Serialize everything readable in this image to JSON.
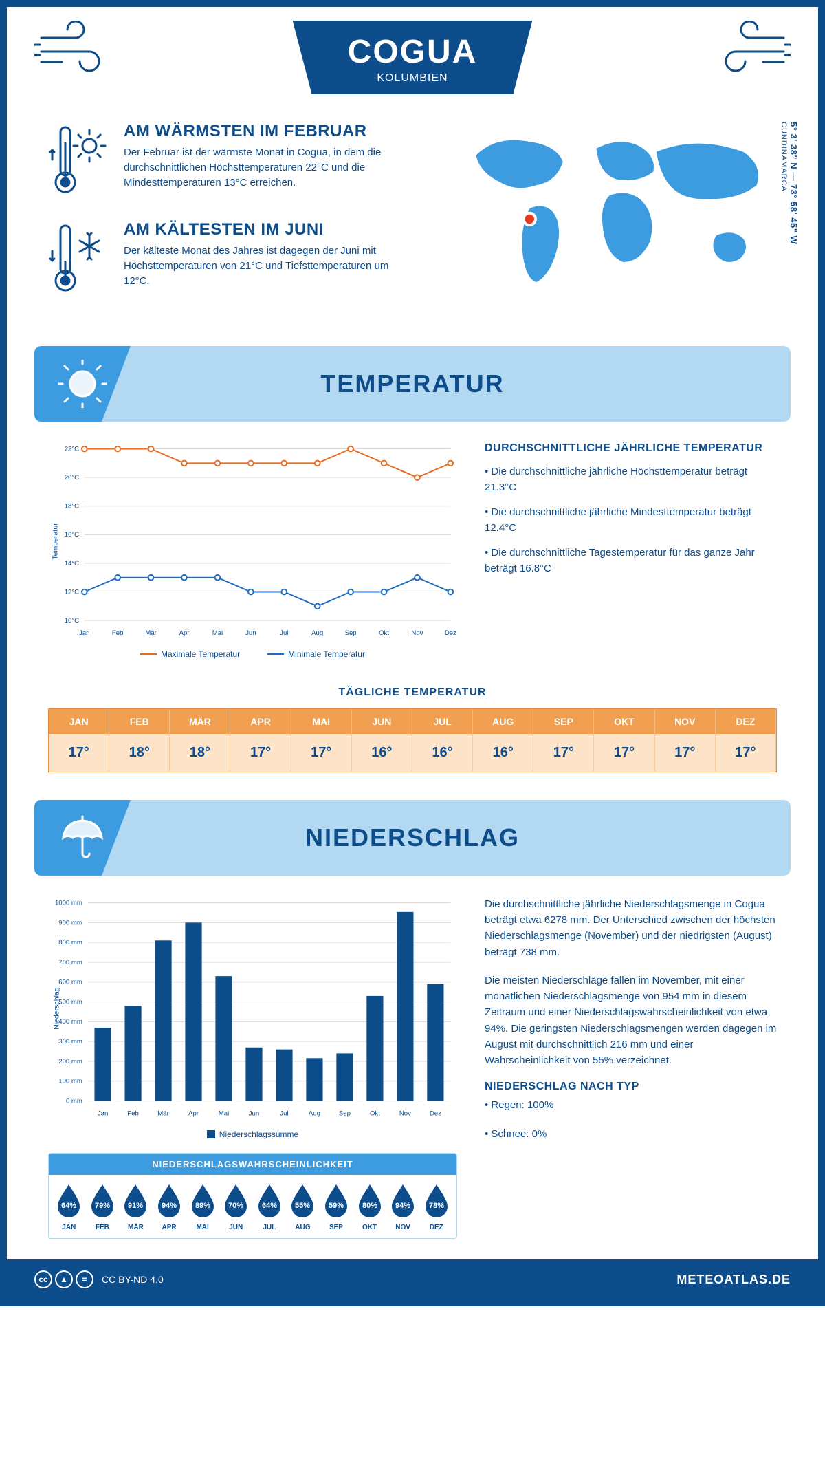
{
  "header": {
    "title": "COGUA",
    "subtitle": "KOLUMBIEN"
  },
  "location": {
    "coords": "5° 3' 38\" N — 73° 58' 45\" W",
    "region": "CUNDINAMARCA",
    "marker": {
      "cx_pct": 26,
      "cy_pct": 56
    }
  },
  "facts": {
    "warmest": {
      "title": "AM WÄRMSTEN IM FEBRUAR",
      "text": "Der Februar ist der wärmste Monat in Cogua, in dem die durchschnittlichen Höchsttemperaturen 22°C und die Mindesttemperaturen 13°C erreichen."
    },
    "coldest": {
      "title": "AM KÄLTESTEN IM JUNI",
      "text": "Der kälteste Monat des Jahres ist dagegen der Juni mit Höchsttemperaturen von 21°C und Tiefsttemperaturen um 12°C."
    }
  },
  "tempSection": {
    "heading": "TEMPERATUR",
    "chart": {
      "type": "line",
      "months": [
        "Jan",
        "Feb",
        "Mär",
        "Apr",
        "Mai",
        "Jun",
        "Jul",
        "Aug",
        "Sep",
        "Okt",
        "Nov",
        "Dez"
      ],
      "max": [
        22,
        22,
        22,
        21,
        21,
        21,
        21,
        21,
        22,
        21,
        20,
        21
      ],
      "min": [
        12,
        13,
        13,
        13,
        13,
        12,
        12,
        11,
        12,
        12,
        13,
        12
      ],
      "ylim": [
        10,
        22
      ],
      "ytick_step": 2,
      "y_label": "Temperatur",
      "max_color": "#e86a1e",
      "min_color": "#1e6cc0",
      "grid_color": "#d9d9d9",
      "background_color": "#ffffff",
      "line_width": 2,
      "marker": "circle",
      "marker_size": 4,
      "legend_max": "Maximale Temperatur",
      "legend_min": "Minimale Temperatur"
    },
    "summary": {
      "title": "DURCHSCHNITTLICHE JÄHRLICHE TEMPERATUR",
      "bullets": [
        "• Die durchschnittliche jährliche Höchsttemperatur beträgt 21.3°C",
        "• Die durchschnittliche jährliche Mindesttemperatur beträgt 12.4°C",
        "• Die durchschnittliche Tagestemperatur für das ganze Jahr beträgt 16.8°C"
      ]
    },
    "daily": {
      "title": "TÄGLICHE TEMPERATUR",
      "months": [
        "JAN",
        "FEB",
        "MÄR",
        "APR",
        "MAI",
        "JUN",
        "JUL",
        "AUG",
        "SEP",
        "OKT",
        "NOV",
        "DEZ"
      ],
      "values": [
        "17°",
        "18°",
        "18°",
        "17°",
        "17°",
        "16°",
        "16°",
        "16°",
        "17°",
        "17°",
        "17°",
        "17°"
      ],
      "header_bg": "#f0a050",
      "cell_bg": "#fde4c8",
      "border_color": "#e08a3d"
    }
  },
  "precipSection": {
    "heading": "NIEDERSCHLAG",
    "chart": {
      "type": "bar",
      "months": [
        "Jan",
        "Feb",
        "Mär",
        "Apr",
        "Mai",
        "Jun",
        "Jul",
        "Aug",
        "Sep",
        "Okt",
        "Nov",
        "Dez"
      ],
      "values": [
        370,
        480,
        810,
        900,
        630,
        270,
        260,
        216,
        240,
        530,
        954,
        590
      ],
      "ylim": [
        0,
        1000
      ],
      "ytick_step": 100,
      "y_label": "Niederschlag",
      "bar_color": "#0d4d8c",
      "grid_color": "#d9d9d9",
      "background_color": "#ffffff",
      "bar_width": 0.55,
      "legend": "Niederschlagssumme"
    },
    "text": {
      "p1": "Die durchschnittliche jährliche Niederschlagsmenge in Cogua beträgt etwa 6278 mm. Der Unterschied zwischen der höchsten Niederschlagsmenge (November) und der niedrigsten (August) beträgt 738 mm.",
      "p2": "Die meisten Niederschläge fallen im November, mit einer monatlichen Niederschlagsmenge von 954 mm in diesem Zeitraum und einer Niederschlagswahrscheinlichkeit von etwa 94%. Die geringsten Niederschlagsmengen werden dagegen im August mit durchschnittlich 216 mm und einer Wahrscheinlichkeit von 55% verzeichnet.",
      "type_title": "NIEDERSCHLAG NACH TYP",
      "type_bullets": [
        "• Regen: 100%",
        "• Schnee: 0%"
      ]
    },
    "probability": {
      "title": "NIEDERSCHLAGSWAHRSCHEINLICHKEIT",
      "months": [
        "JAN",
        "FEB",
        "MÄR",
        "APR",
        "MAI",
        "JUN",
        "JUL",
        "AUG",
        "SEP",
        "OKT",
        "NOV",
        "DEZ"
      ],
      "pct": [
        "64%",
        "79%",
        "91%",
        "94%",
        "89%",
        "70%",
        "64%",
        "55%",
        "59%",
        "80%",
        "94%",
        "78%"
      ],
      "drop_color": "#0d4d8c"
    }
  },
  "footer": {
    "license": "CC BY-ND 4.0",
    "site": "METEOATLAS.DE"
  },
  "colors": {
    "primary": "#0d4d8c",
    "light_blue": "#b3d9f2",
    "mid_blue": "#3d9be0",
    "orange": "#e86a1e",
    "marker_ring": "#ffffff",
    "marker_fill": "#e33d1e"
  }
}
